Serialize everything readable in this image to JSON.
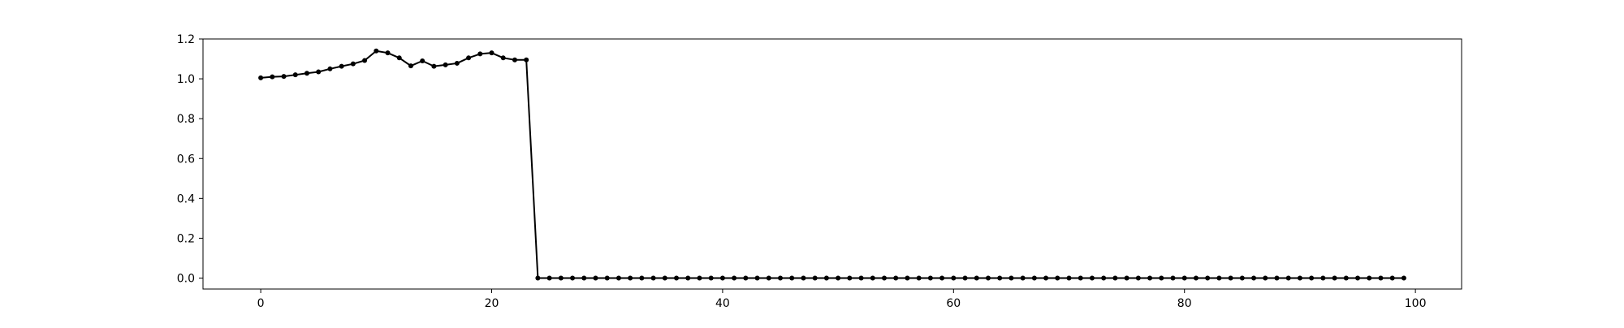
{
  "chart_data": {
    "type": "line",
    "title": "",
    "xlabel": "",
    "ylabel": "",
    "xlim": [
      -5,
      104
    ],
    "ylim": [
      -0.055,
      1.2
    ],
    "grid": false,
    "x_ticks": [
      0,
      20,
      40,
      60,
      80,
      100
    ],
    "y_ticks": [
      0.0,
      0.2,
      0.4,
      0.6,
      0.8,
      1.0,
      1.2
    ],
    "x_tick_labels": [
      "0",
      "20",
      "40",
      "60",
      "80",
      "100"
    ],
    "y_tick_labels": [
      "0.0",
      "0.2",
      "0.4",
      "0.6",
      "0.8",
      "1.0",
      "1.2"
    ],
    "series": [
      {
        "color": "#000000",
        "marker": "dot",
        "x": [
          0,
          1,
          2,
          3,
          4,
          5,
          6,
          7,
          8,
          9,
          10,
          11,
          12,
          13,
          14,
          15,
          16,
          17,
          18,
          19,
          20,
          21,
          22,
          23,
          24,
          25,
          26,
          27,
          28,
          29,
          30,
          31,
          32,
          33,
          34,
          35,
          36,
          37,
          38,
          39,
          40,
          41,
          42,
          43,
          44,
          45,
          46,
          47,
          48,
          49,
          50,
          51,
          52,
          53,
          54,
          55,
          56,
          57,
          58,
          59,
          60,
          61,
          62,
          63,
          64,
          65,
          66,
          67,
          68,
          69,
          70,
          71,
          72,
          73,
          74,
          75,
          76,
          77,
          78,
          79,
          80,
          81,
          82,
          83,
          84,
          85,
          86,
          87,
          88,
          89,
          90,
          91,
          92,
          93,
          94,
          95,
          96,
          97,
          98,
          99
        ],
        "values": [
          1.005,
          1.01,
          1.012,
          1.02,
          1.028,
          1.035,
          1.05,
          1.063,
          1.075,
          1.092,
          1.14,
          1.13,
          1.105,
          1.065,
          1.09,
          1.063,
          1.07,
          1.078,
          1.105,
          1.125,
          1.13,
          1.105,
          1.095,
          1.095,
          0.0,
          0,
          0,
          0,
          0,
          0,
          0,
          0,
          0,
          0,
          0,
          0,
          0,
          0,
          0,
          0,
          0,
          0,
          0,
          0,
          0,
          0,
          0,
          0,
          0,
          0,
          0,
          0,
          0,
          0,
          0,
          0,
          0,
          0,
          0,
          0,
          0,
          0,
          0,
          0,
          0,
          0,
          0,
          0,
          0,
          0,
          0,
          0,
          0,
          0,
          0,
          0,
          0,
          0,
          0,
          0,
          0,
          0,
          0,
          0,
          0,
          0,
          0,
          0,
          0,
          0,
          0,
          0,
          0,
          0,
          0,
          0,
          0,
          0,
          0,
          0
        ]
      }
    ]
  }
}
